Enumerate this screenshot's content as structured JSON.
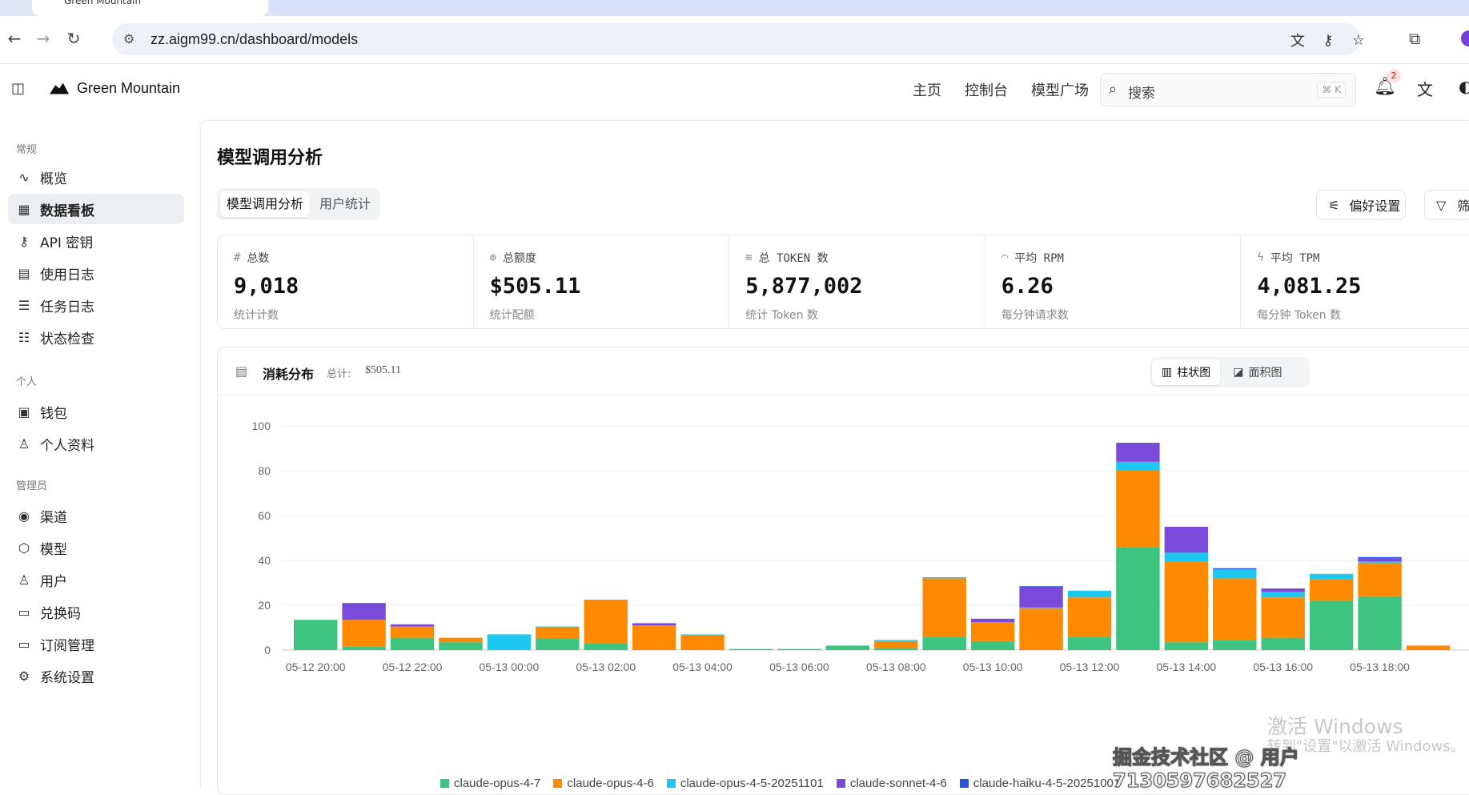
{
  "browser": {
    "tab_title": "Green Mountain",
    "url": "zz.aigm99.cn/dashboard/models"
  },
  "header": {
    "brand": "Green Mountain",
    "nav": [
      "主页",
      "控制台",
      "模型广场"
    ],
    "search_placeholder": "搜索",
    "search_shortcut": "⌘ K",
    "notification_count": "2"
  },
  "sidebar": {
    "sections": [
      {
        "title": "常规",
        "items": [
          {
            "label": "概览",
            "icon": "activity-icon"
          },
          {
            "label": "数据看板",
            "icon": "dashboard-icon",
            "active": true
          },
          {
            "label": "API 密钥",
            "icon": "key-icon"
          },
          {
            "label": "使用日志",
            "icon": "document-icon"
          },
          {
            "label": "任务日志",
            "icon": "list-icon"
          },
          {
            "label": "状态检查",
            "icon": "list-check-icon"
          }
        ]
      },
      {
        "title": "个人",
        "items": [
          {
            "label": "钱包",
            "icon": "wallet-icon"
          },
          {
            "label": "个人资料",
            "icon": "user-icon"
          }
        ]
      },
      {
        "title": "管理员",
        "items": [
          {
            "label": "渠道",
            "icon": "broadcast-icon"
          },
          {
            "label": "模型",
            "icon": "box-icon"
          },
          {
            "label": "用户",
            "icon": "users-icon"
          },
          {
            "label": "兑换码",
            "icon": "ticket-icon"
          },
          {
            "label": "订阅管理",
            "icon": "card-icon"
          },
          {
            "label": "系统设置",
            "icon": "gear-icon"
          }
        ]
      }
    ]
  },
  "main": {
    "title": "模型调用分析",
    "tabs": [
      "模型调用分析",
      "用户统计"
    ],
    "preferences_label": "偏好设置",
    "filter_label": "筛"
  },
  "stats": [
    {
      "label": "总数",
      "icon": "hash-icon",
      "value": "9,018",
      "hint": "统计计数"
    },
    {
      "label": "总额度",
      "icon": "coins-icon",
      "value": "$505.11",
      "hint": "统计配额"
    },
    {
      "label": "总 TOKEN 数",
      "icon": "layers-icon",
      "value": "5,877,002",
      "hint": "统计 Token 数"
    },
    {
      "label": "平均 RPM",
      "icon": "gauge-icon",
      "value": "6.26",
      "hint": "每分钟请求数"
    },
    {
      "label": "平均 TPM",
      "icon": "zap-icon",
      "value": "4,081.25",
      "hint": "每分钟 Token 数"
    }
  ],
  "chart_card": {
    "title": "消耗分布",
    "total_label": "总计:",
    "total_value": "$505.11",
    "toggle": [
      "柱状图",
      "面积图"
    ]
  },
  "chart_data": {
    "type": "bar",
    "stacked": true,
    "ylim": [
      0,
      100
    ],
    "yticks": [
      0,
      20,
      40,
      60,
      80,
      100
    ],
    "xtick_labels": [
      "05-12 20:00",
      "05-12 22:00",
      "05-13 00:00",
      "05-13 02:00",
      "05-13 04:00",
      "05-13 06:00",
      "05-13 08:00",
      "05-13 10:00",
      "05-13 12:00",
      "05-13 14:00",
      "05-13 16:00",
      "05-13 18:00"
    ],
    "categories": [
      "05-12 20:00",
      "05-12 21:00",
      "05-12 22:00",
      "05-12 23:00",
      "05-13 00:00",
      "05-13 01:00",
      "05-13 02:00",
      "05-13 03:00",
      "05-13 04:00",
      "05-13 05:00",
      "05-13 06:00",
      "05-13 07:00",
      "05-13 08:00",
      "05-13 09:00",
      "05-13 10:00",
      "05-13 11:00",
      "05-13 12:00",
      "05-13 13:00",
      "05-13 14:00",
      "05-13 15:00",
      "05-13 16:00",
      "05-13 17:00",
      "05-13 18:00",
      "05-13 19:00"
    ],
    "series": [
      {
        "name": "claude-opus-4-7",
        "color": "#3cc480",
        "values": [
          13.5,
          1.5,
          5.5,
          3.5,
          0,
          5,
          3,
          0,
          0,
          0.5,
          0.5,
          2,
          1,
          6,
          4,
          0,
          6,
          46,
          3.5,
          4.5,
          5.5,
          22,
          24,
          0
        ]
      },
      {
        "name": "claude-opus-4-6",
        "color": "#ff8a00",
        "values": [
          0,
          12,
          5,
          2,
          0,
          5,
          19.5,
          11,
          6.5,
          0,
          0,
          0,
          3,
          26,
          8.5,
          18.5,
          17.5,
          34,
          36,
          27.5,
          18,
          9.5,
          15,
          2
        ]
      },
      {
        "name": "claude-opus-4-5-20251101",
        "color": "#1cc8f0",
        "values": [
          0,
          0,
          0,
          0,
          7,
          0.5,
          0,
          0,
          0.5,
          0,
          0,
          0,
          0.5,
          0.5,
          0,
          0.5,
          3,
          4,
          4,
          4,
          2.5,
          2.5,
          0.5,
          0
        ]
      },
      {
        "name": "claude-sonnet-4-6",
        "color": "#7a4bdb",
        "values": [
          0,
          7.5,
          1,
          0,
          0,
          0,
          0,
          1,
          0,
          0,
          0,
          0,
          0,
          0,
          1.5,
          9,
          0,
          8.5,
          11.5,
          0,
          1.5,
          0,
          1.5,
          0
        ]
      },
      {
        "name": "claude-haiku-4-5-20251001",
        "color": "#2255e0",
        "values": [
          0,
          0,
          0,
          0,
          0,
          0,
          0,
          0,
          0,
          0,
          0,
          0,
          0,
          0,
          0,
          0.5,
          0,
          0,
          0,
          0.5,
          0,
          0,
          0.5,
          0
        ]
      }
    ],
    "legend": [
      "claude-opus-4-7",
      "claude-opus-4-6",
      "claude-opus-4-5-20251101",
      "claude-sonnet-4-6",
      "claude-haiku-4-5-20251001"
    ],
    "legend_position": "bottom",
    "grid": true
  },
  "overlays": {
    "windows_line1": "激活 Windows",
    "windows_line2": "转到\"设置\"以激活 Windows。",
    "credit": "掘金技术社区 @ 用户7130597682527"
  }
}
